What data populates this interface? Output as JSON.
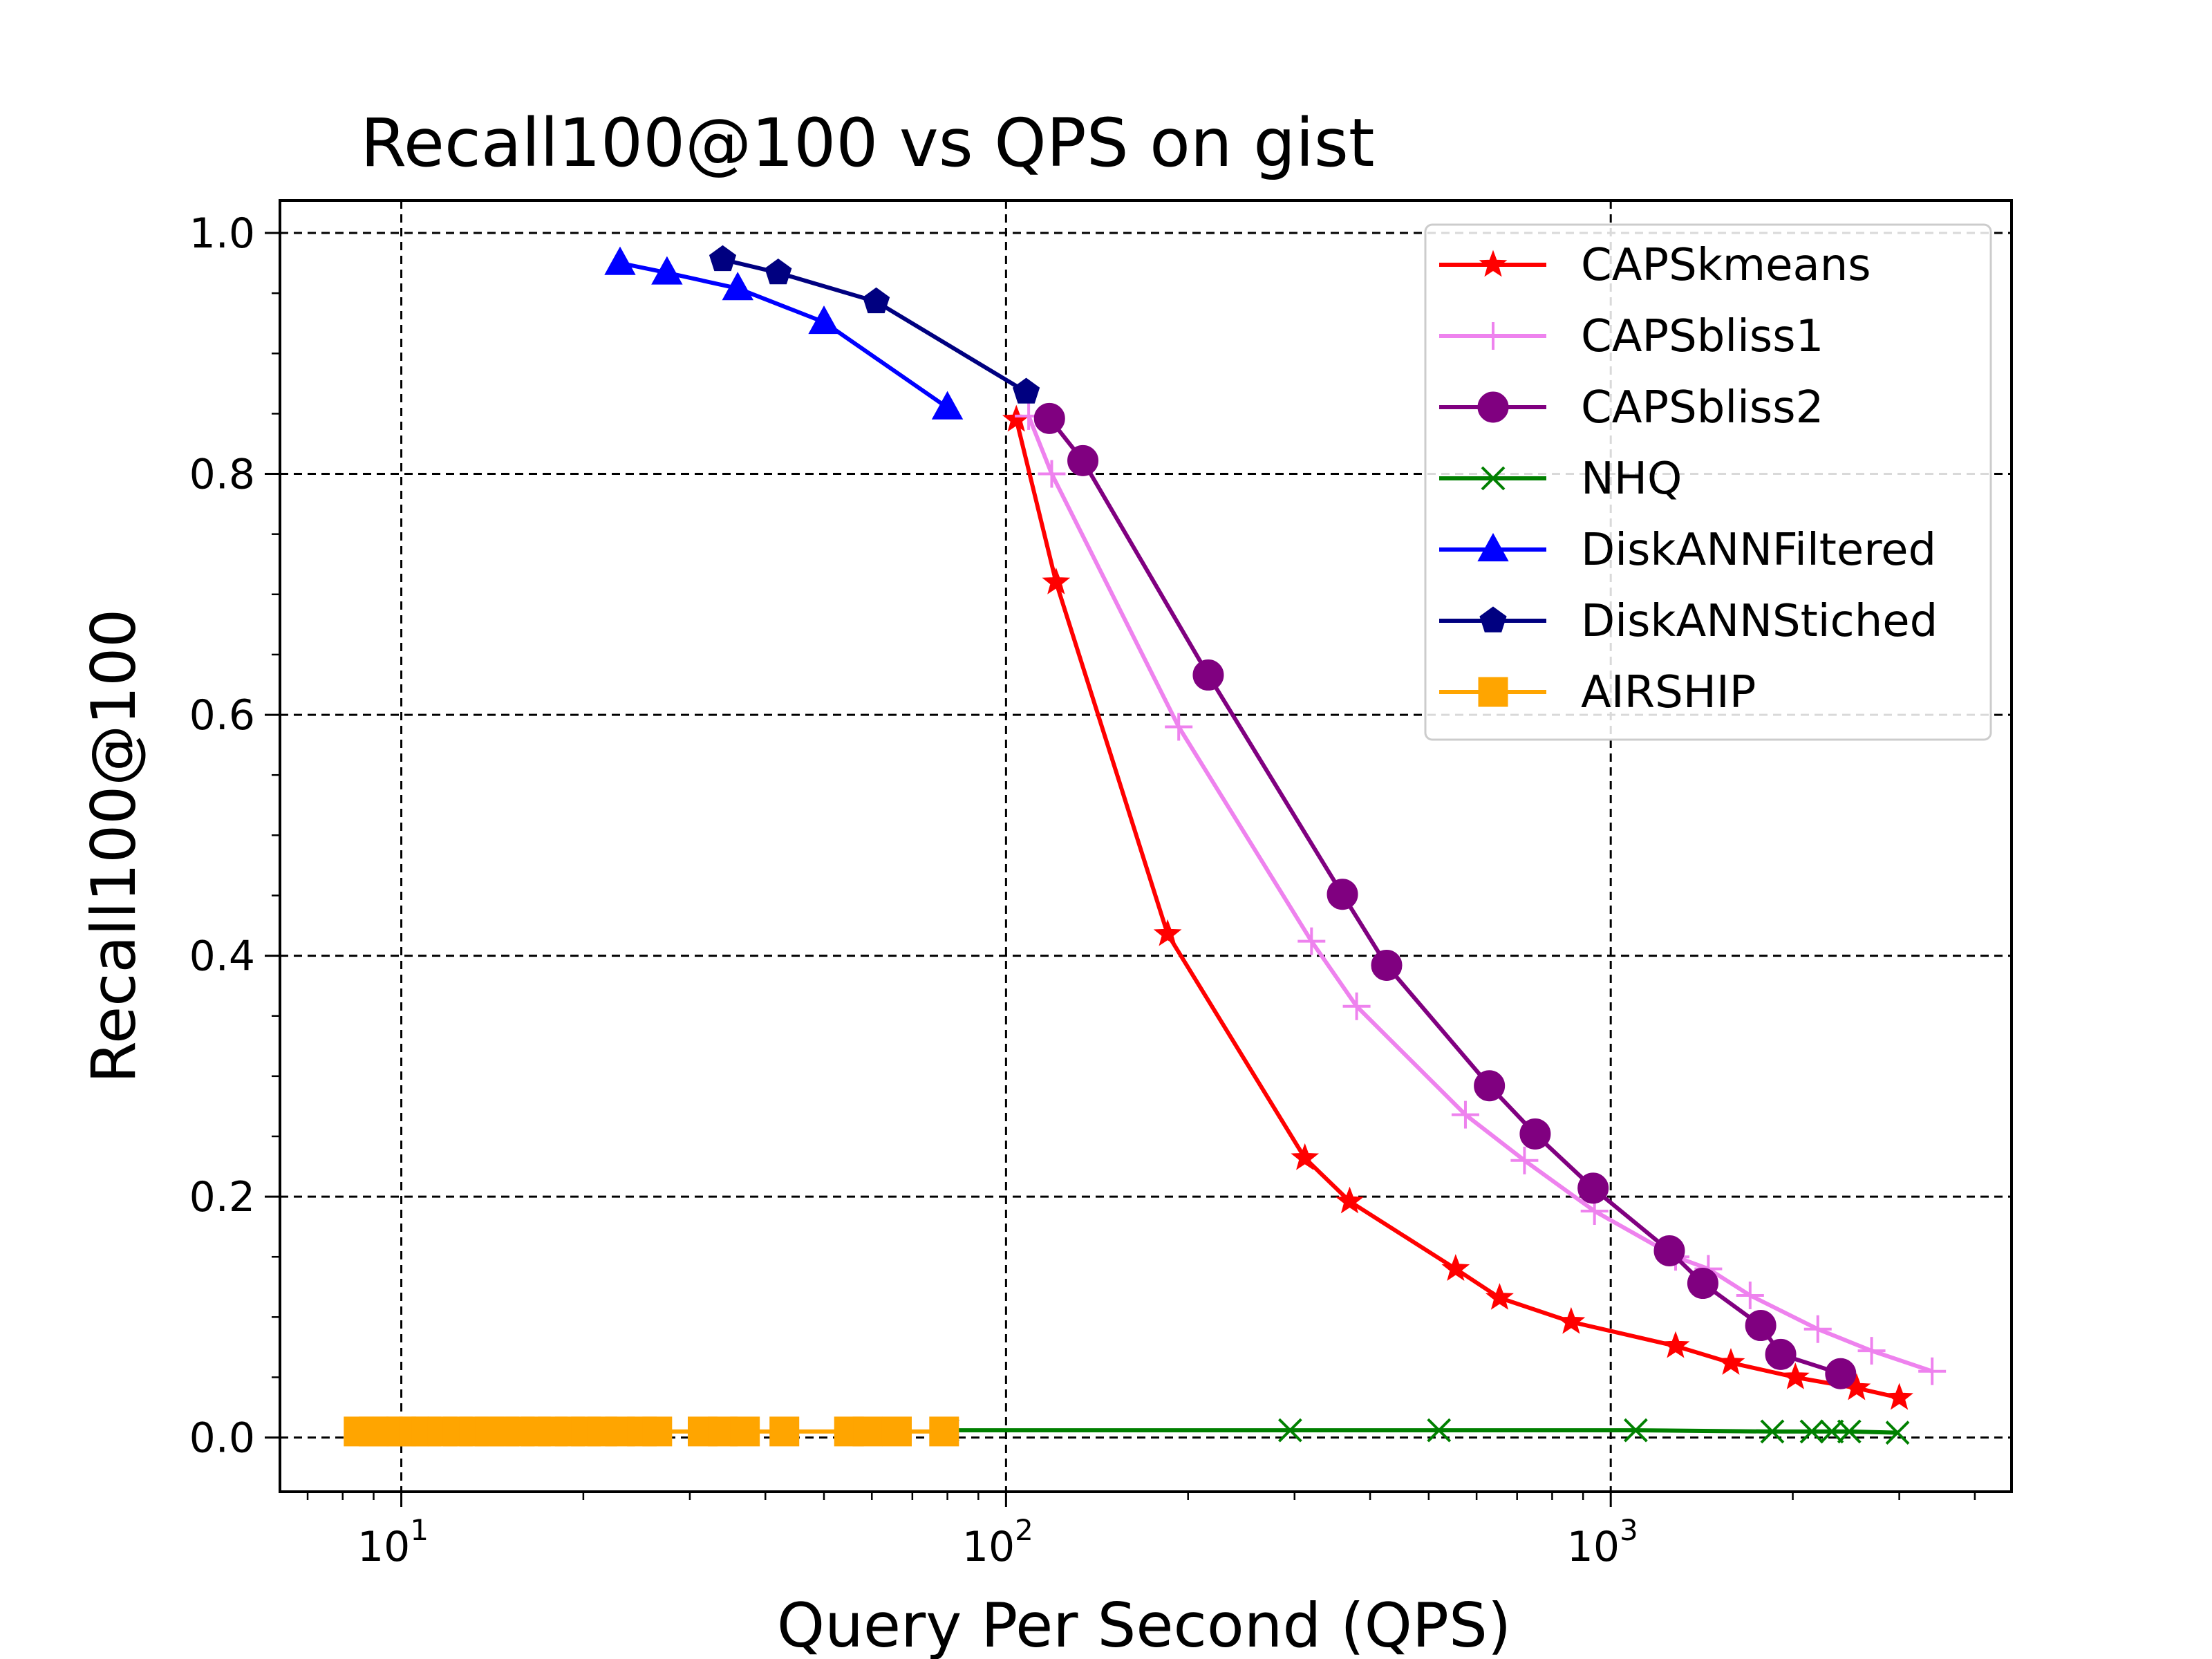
{
  "chart_data": {
    "type": "line",
    "title": "Recall100@100 vs QPS on gist",
    "xlabel": "Query Per Second (QPS)",
    "ylabel": "Recall100@100",
    "xscale": "log",
    "xlim": [
      6.3,
      4600
    ],
    "ylim": [
      -0.045,
      1.027
    ],
    "grid": true,
    "legend_position": "top-right",
    "xticks": [
      {
        "value": 10,
        "base": "10",
        "exp": "1"
      },
      {
        "value": 100,
        "base": "10",
        "exp": "2"
      },
      {
        "value": 1000,
        "base": "10",
        "exp": "3"
      }
    ],
    "yticks": [
      {
        "value": 0.0,
        "label": "0.0"
      },
      {
        "value": 0.2,
        "label": "0.2"
      },
      {
        "value": 0.4,
        "label": "0.4"
      },
      {
        "value": 0.6,
        "label": "0.6"
      },
      {
        "value": 0.8,
        "label": "0.8"
      },
      {
        "value": 1.0,
        "label": "1.0"
      }
    ],
    "series": [
      {
        "name": "CAPSkmeans",
        "color": "#ff0000",
        "marker": "star",
        "points": [
          [
            104,
            0.845
          ],
          [
            121,
            0.71
          ],
          [
            185,
            0.418
          ],
          [
            312,
            0.232
          ],
          [
            370,
            0.196
          ],
          [
            554,
            0.14
          ],
          [
            655,
            0.116
          ],
          [
            860,
            0.096
          ],
          [
            1280,
            0.076
          ],
          [
            1580,
            0.062
          ],
          [
            2020,
            0.05
          ],
          [
            2550,
            0.041
          ],
          [
            3000,
            0.033
          ]
        ]
      },
      {
        "name": "CAPSbliss1",
        "color": "#ee82ee",
        "marker": "plus",
        "points": [
          [
            109,
            0.848
          ],
          [
            119,
            0.8
          ],
          [
            193,
            0.59
          ],
          [
            320,
            0.412
          ],
          [
            380,
            0.358
          ],
          [
            575,
            0.268
          ],
          [
            720,
            0.23
          ],
          [
            940,
            0.188
          ],
          [
            1280,
            0.15
          ],
          [
            1450,
            0.14
          ],
          [
            1700,
            0.118
          ],
          [
            2200,
            0.09
          ],
          [
            2700,
            0.072
          ],
          [
            3400,
            0.055
          ]
        ]
      },
      {
        "name": "CAPSbliss2",
        "color": "#800080",
        "marker": "circle",
        "points": [
          [
            118,
            0.846
          ],
          [
            134,
            0.811
          ],
          [
            216,
            0.633
          ],
          [
            360,
            0.451
          ],
          [
            426,
            0.392
          ],
          [
            630,
            0.292
          ],
          [
            750,
            0.252
          ],
          [
            935,
            0.207
          ],
          [
            1250,
            0.155
          ],
          [
            1420,
            0.128
          ],
          [
            1770,
            0.093
          ],
          [
            1910,
            0.069
          ],
          [
            2400,
            0.053
          ]
        ]
      },
      {
        "name": "NHQ",
        "color": "#008000",
        "marker": "x",
        "points": [
          [
            80,
            0.006
          ],
          [
            295,
            0.006
          ],
          [
            520,
            0.006
          ],
          [
            1100,
            0.006
          ],
          [
            1850,
            0.005
          ],
          [
            2150,
            0.005
          ],
          [
            2320,
            0.005
          ],
          [
            2480,
            0.005
          ],
          [
            2980,
            0.004
          ]
        ]
      },
      {
        "name": "DiskANNFiltered",
        "color": "#0000ff",
        "marker": "triangle",
        "points": [
          [
            23,
            0.975
          ],
          [
            27.5,
            0.967
          ],
          [
            36,
            0.954
          ],
          [
            50,
            0.926
          ],
          [
            80,
            0.855
          ]
        ]
      },
      {
        "name": "DiskANNStiched",
        "color": "#000080",
        "marker": "pentagon",
        "points": [
          [
            34,
            0.978
          ],
          [
            42,
            0.967
          ],
          [
            61,
            0.943
          ],
          [
            108,
            0.868
          ]
        ]
      },
      {
        "name": "AIRSHIP",
        "color": "#ffa500",
        "marker": "square",
        "points": [
          [
            8.5,
            0.005
          ],
          [
            9,
            0.005
          ],
          [
            9.5,
            0.005
          ],
          [
            10,
            0.005
          ],
          [
            10.5,
            0.005
          ],
          [
            11,
            0.005
          ],
          [
            11.7,
            0.005
          ],
          [
            12.4,
            0.005
          ],
          [
            13.2,
            0.005
          ],
          [
            14,
            0.005
          ],
          [
            14.8,
            0.005
          ],
          [
            15.7,
            0.005
          ],
          [
            16.7,
            0.005
          ],
          [
            17.8,
            0.005
          ],
          [
            19,
            0.005
          ],
          [
            20.2,
            0.005
          ],
          [
            21.5,
            0.005
          ],
          [
            23,
            0.005
          ],
          [
            25,
            0.005
          ],
          [
            26.5,
            0.005
          ],
          [
            31.5,
            0.005
          ],
          [
            34,
            0.005
          ],
          [
            37,
            0.005
          ],
          [
            43,
            0.005
          ],
          [
            55,
            0.005
          ],
          [
            59,
            0.005
          ],
          [
            66,
            0.005
          ],
          [
            79,
            0.005
          ]
        ]
      }
    ]
  }
}
